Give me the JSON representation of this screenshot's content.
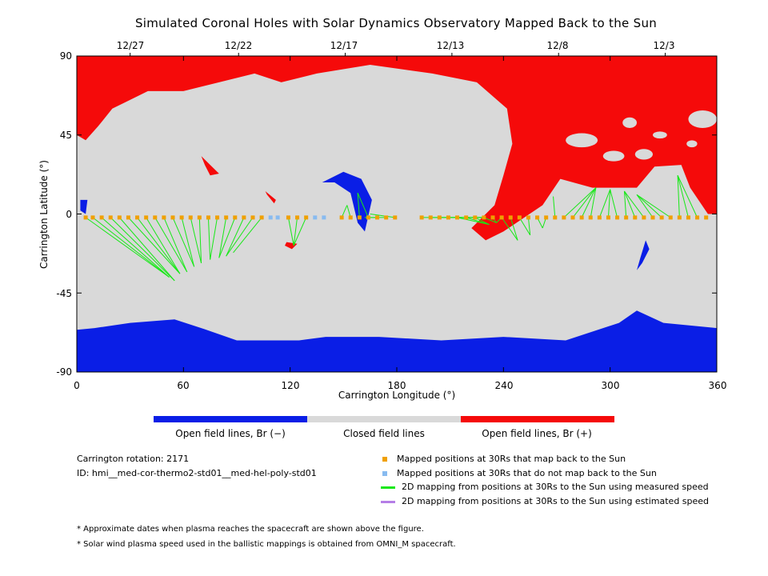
{
  "chart_data": {
    "type": "map",
    "title": "Simulated Coronal Holes with Solar Dynamics Observatory Mapped Back to the Sun",
    "xlabel": "Carrington Longitude (°)",
    "ylabel": "Carrington Latitude (°)",
    "xlim": [
      0,
      360
    ],
    "ylim": [
      -90,
      90
    ],
    "x_ticks": [
      0,
      60,
      120,
      180,
      240,
      300,
      360
    ],
    "y_ticks": [
      90,
      45,
      0,
      -45,
      -90
    ],
    "top_date_ticks": [
      {
        "label": "12/27",
        "lon": 30
      },
      {
        "label": "12/22",
        "lon": 91
      },
      {
        "label": "12/17",
        "lon": 151
      },
      {
        "label": "12/13",
        "lon": 211
      },
      {
        "label": "12/8",
        "lon": 271
      },
      {
        "label": "12/3",
        "lon": 331
      }
    ],
    "colors": {
      "open_negative": "#0a1ee6",
      "closed": "#d9d9d9",
      "open_positive": "#f50a0a",
      "mapped": "#f0a000",
      "unmapped": "#88bbf0",
      "measured_speed": "#18e818",
      "estimated_speed": "#b57ee6"
    },
    "regions": {
      "north_open_positive": [
        [
          0,
          90
        ],
        [
          360,
          90
        ],
        [
          360,
          0
        ],
        [
          355,
          0
        ],
        [
          345,
          15
        ],
        [
          340,
          28
        ],
        [
          325,
          27
        ],
        [
          315,
          15
        ],
        [
          290,
          15
        ],
        [
          272,
          20
        ],
        [
          262,
          5
        ],
        [
          240,
          -10
        ],
        [
          230,
          -15
        ],
        [
          222,
          -8
        ],
        [
          235,
          5
        ],
        [
          240,
          22
        ],
        [
          245,
          40
        ],
        [
          242,
          60
        ],
        [
          225,
          75
        ],
        [
          200,
          80
        ],
        [
          165,
          85
        ],
        [
          135,
          80
        ],
        [
          115,
          75
        ],
        [
          100,
          80
        ],
        [
          80,
          75
        ],
        [
          60,
          70
        ],
        [
          40,
          70
        ],
        [
          20,
          60
        ],
        [
          12,
          50
        ],
        [
          5,
          42
        ],
        [
          0,
          45
        ]
      ],
      "south_open_negative": [
        [
          0,
          -90
        ],
        [
          360,
          -90
        ],
        [
          360,
          -65
        ],
        [
          330,
          -62
        ],
        [
          315,
          -55
        ],
        [
          305,
          -62
        ],
        [
          275,
          -72
        ],
        [
          240,
          -70
        ],
        [
          205,
          -72
        ],
        [
          170,
          -70
        ],
        [
          140,
          -70
        ],
        [
          125,
          -72
        ],
        [
          90,
          -72
        ],
        [
          70,
          -65
        ],
        [
          55,
          -60
        ],
        [
          30,
          -62
        ],
        [
          10,
          -65
        ],
        [
          0,
          -66
        ]
      ]
    },
    "mapped_points": {
      "description": "Mapped positions at 30Rs that map back to the Sun",
      "lon": [
        5,
        9,
        14,
        19,
        24,
        29,
        34,
        39,
        44,
        49,
        54,
        59,
        64,
        69,
        74,
        79,
        84,
        89,
        94,
        99,
        104,
        119,
        124,
        129,
        149,
        154,
        159,
        164,
        169,
        174,
        179,
        194,
        199,
        204,
        209,
        214,
        219,
        224,
        229,
        234,
        239,
        244,
        249,
        254,
        259,
        264,
        269,
        274,
        279,
        284,
        289,
        294,
        299,
        304,
        309,
        314,
        319,
        324,
        329,
        334,
        339,
        344,
        349,
        354
      ],
      "lat": -2
    },
    "unmapped_points": {
      "description": "Mapped positions at 30Rs that do not map back to the Sun",
      "lon": [
        109,
        113,
        134,
        139
      ],
      "lat": -2
    },
    "footpoint_clusters": [
      {
        "from": [
          5,
          60
        ],
        "to": [
          [
            52,
            -36
          ],
          [
            55,
            -38
          ],
          [
            58,
            -34
          ],
          [
            62,
            -33
          ],
          [
            66,
            -30
          ]
        ]
      },
      {
        "from": [
          64,
          104
        ],
        "to": [
          [
            70,
            -28
          ],
          [
            75,
            -26
          ],
          [
            80,
            -25
          ],
          [
            84,
            -24
          ],
          [
            88,
            -22
          ]
        ]
      },
      {
        "from": [
          119,
          129
        ],
        "to": [
          [
            122,
            -18
          ]
        ]
      },
      {
        "from": [
          149,
          179
        ],
        "to": [
          [
            152,
            5
          ],
          [
            158,
            12
          ],
          [
            162,
            -2
          ],
          [
            165,
            0
          ]
        ]
      },
      {
        "from": [
          194,
          239
        ],
        "to": [
          [
            228,
            -2
          ],
          [
            232,
            -6
          ],
          [
            236,
            -5
          ]
        ]
      },
      {
        "from": [
          239,
          269
        ],
        "to": [
          [
            248,
            -15
          ],
          [
            255,
            -12
          ],
          [
            262,
            -8
          ],
          [
            268,
            10
          ]
        ]
      },
      {
        "from": [
          274,
          349
        ],
        "to": [
          [
            292,
            15
          ],
          [
            300,
            14
          ],
          [
            308,
            13
          ],
          [
            315,
            11
          ],
          [
            338,
            22
          ]
        ]
      }
    ]
  },
  "colorbar": {
    "labels": [
      "Open field lines, Br (−)",
      "Closed field lines",
      "Open field lines, Br (+)"
    ]
  },
  "info": {
    "rotation": "Carrington rotation: 2171",
    "id": "ID: hmi__med-cor-thermo2-std01__med-hel-poly-std01"
  },
  "legend": [
    {
      "label": "Mapped positions at 30Rs that map back to the Sun",
      "kind": "square",
      "color": "#f0a000"
    },
    {
      "label": "Mapped positions at 30Rs that do not map back to the Sun",
      "kind": "square",
      "color": "#88bbf0"
    },
    {
      "label": "2D mapping from positions at 30Rs to the Sun using measured speed",
      "kind": "line",
      "color": "#18e818"
    },
    {
      "label": "2D mapping from positions at 30Rs to the Sun using estimated speed",
      "kind": "line",
      "color": "#b57ee6"
    }
  ],
  "notes": [
    "* Approximate dates when plasma reaches the spacecraft are shown above the figure.",
    "* Solar wind plasma speed used in the ballistic mappings is obtained from OMNI_M spacecraft."
  ]
}
